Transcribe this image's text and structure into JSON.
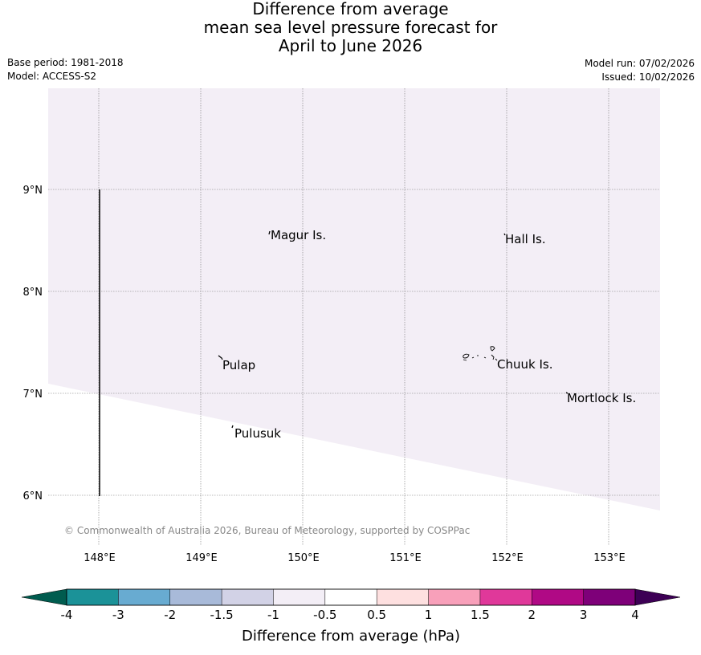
{
  "title": {
    "line1": "Difference from average",
    "line2": "mean sea level pressure forecast for",
    "line3": "April to June 2026"
  },
  "meta": {
    "base_period": "Base period: 1981-2018",
    "model": "Model: ACCESS-S2",
    "model_run": "Model run: 07/02/2026",
    "issued": "Issued: 10/02/2026"
  },
  "map": {
    "lon_labels": [
      "148°E",
      "149°E",
      "150°E",
      "151°E",
      "152°E",
      "153°E"
    ],
    "lat_labels": [
      "9°N",
      "8°N",
      "7°N",
      "6°N"
    ],
    "places": [
      {
        "name": "Magur Is.",
        "lon": 149.68,
        "lat": 8.55
      },
      {
        "name": "Hall Is.",
        "lon": 151.97,
        "lat": 8.52
      },
      {
        "name": "Pulap",
        "lon": 149.2,
        "lat": 7.29
      },
      {
        "name": "Chuuk Is.",
        "lon": 151.85,
        "lat": 7.3
      },
      {
        "name": "Mortlock Is.",
        "lon": 152.6,
        "lat": 6.97
      },
      {
        "name": "Pulusuk",
        "lon": 149.32,
        "lat": 6.63
      }
    ],
    "shaded_category": "-1 to -0.5",
    "shaded_color": "#f3eef6",
    "copyright": "© Commonwealth of Australia 2026, Bureau of Meteorology, supported by COSPPac"
  },
  "colorbar": {
    "label": "Difference from average (hPa)",
    "ticks": [
      "-4",
      "-3",
      "-2",
      "-1.5",
      "-1",
      "-0.5",
      "0.5",
      "1",
      "1.5",
      "2",
      "3",
      "4"
    ],
    "min_color": "#005c4f",
    "max_color": "#3d0055",
    "colors": [
      "#1b9298",
      "#68abd1",
      "#a8bad9",
      "#d2d2e6",
      "#f3eef6",
      "#ffffff",
      "#fee0e0",
      "#f8a0ba",
      "#e0389a",
      "#b00985",
      "#7e0079"
    ]
  }
}
